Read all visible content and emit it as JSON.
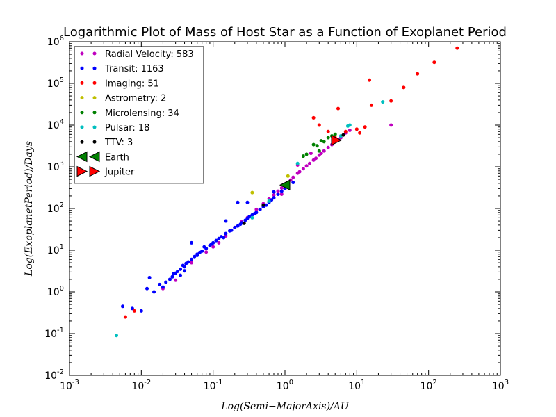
{
  "chart_data": {
    "type": "scatter",
    "title": "Logarithmic Plot of Mass of Host Star as a Function of Exoplanet Period",
    "xlabel": "Log(Semi−MajorAxis)/AU",
    "ylabel": "Log(ExoplanetPeriod)/Days",
    "xscale": "log",
    "yscale": "log",
    "xlim": [
      0.001,
      1000
    ],
    "ylim": [
      0.01,
      1000000
    ],
    "x_ticks": [
      {
        "base": "10",
        "exp": "-3"
      },
      {
        "base": "10",
        "exp": "-2"
      },
      {
        "base": "10",
        "exp": "-1"
      },
      {
        "base": "10",
        "exp": "0"
      },
      {
        "base": "10",
        "exp": "1"
      },
      {
        "base": "10",
        "exp": "2"
      },
      {
        "base": "10",
        "exp": "3"
      }
    ],
    "y_ticks": [
      {
        "base": "10",
        "exp": "-2"
      },
      {
        "base": "10",
        "exp": "-1"
      },
      {
        "base": "10",
        "exp": "0"
      },
      {
        "base": "10",
        "exp": "1"
      },
      {
        "base": "10",
        "exp": "2"
      },
      {
        "base": "10",
        "exp": "3"
      },
      {
        "base": "10",
        "exp": "4"
      },
      {
        "base": "10",
        "exp": "5"
      },
      {
        "base": "10",
        "exp": "6"
      }
    ],
    "grid": false,
    "legend_position": "upper-left",
    "series": [
      {
        "name": "Radial Velocity: 583",
        "color": "#bf00bf",
        "marker": "circle",
        "points": [
          [
            0.02,
            1.2
          ],
          [
            0.03,
            1.9
          ],
          [
            0.05,
            5
          ],
          [
            0.08,
            9
          ],
          [
            0.1,
            12
          ],
          [
            0.12,
            15
          ],
          [
            0.15,
            22
          ],
          [
            0.2,
            35
          ],
          [
            0.25,
            48
          ],
          [
            0.3,
            60
          ],
          [
            0.4,
            95
          ],
          [
            0.5,
            130
          ],
          [
            0.6,
            170
          ],
          [
            0.7,
            210
          ],
          [
            0.8,
            260
          ],
          [
            0.9,
            310
          ],
          [
            1.0,
            365
          ],
          [
            1.1,
            420
          ],
          [
            1.2,
            480
          ],
          [
            1.3,
            560
          ],
          [
            1.5,
            700
          ],
          [
            1.6,
            760
          ],
          [
            1.8,
            900
          ],
          [
            2.0,
            1050
          ],
          [
            2.2,
            1200
          ],
          [
            2.5,
            1450
          ],
          [
            2.7,
            1600
          ],
          [
            3.0,
            1900
          ],
          [
            3.2,
            2100
          ],
          [
            3.5,
            2400
          ],
          [
            4.0,
            2900
          ],
          [
            4.5,
            3400
          ],
          [
            5.0,
            4100
          ],
          [
            5.5,
            4500
          ],
          [
            6.0,
            5000
          ],
          [
            7.0,
            6500
          ],
          [
            8.0,
            7500
          ],
          [
            30,
            10000
          ],
          [
            1.5,
            1100
          ],
          [
            0.9,
            220
          ],
          [
            2.3,
            2100
          ]
        ]
      },
      {
        "name": "Transit: 1163",
        "color": "#0000ff",
        "marker": "circle",
        "points": [
          [
            0.0055,
            0.45
          ],
          [
            0.0075,
            0.4
          ],
          [
            0.01,
            0.35
          ],
          [
            0.012,
            1.2
          ],
          [
            0.013,
            2.2
          ],
          [
            0.015,
            1.0
          ],
          [
            0.018,
            1.5
          ],
          [
            0.02,
            1.3
          ],
          [
            0.022,
            1.7
          ],
          [
            0.025,
            2.0
          ],
          [
            0.027,
            2.3
          ],
          [
            0.03,
            2.8
          ],
          [
            0.032,
            3.1
          ],
          [
            0.035,
            3.5
          ],
          [
            0.04,
            4.0
          ],
          [
            0.042,
            4.8
          ],
          [
            0.045,
            5.2
          ],
          [
            0.05,
            6.0
          ],
          [
            0.055,
            7.0
          ],
          [
            0.06,
            8.0
          ],
          [
            0.065,
            8.8
          ],
          [
            0.07,
            9.5
          ],
          [
            0.08,
            11
          ],
          [
            0.09,
            13
          ],
          [
            0.1,
            15
          ],
          [
            0.11,
            17
          ],
          [
            0.12,
            19
          ],
          [
            0.13,
            21
          ],
          [
            0.15,
            25
          ],
          [
            0.17,
            29
          ],
          [
            0.2,
            35
          ],
          [
            0.22,
            38
          ],
          [
            0.25,
            45
          ],
          [
            0.28,
            52
          ],
          [
            0.3,
            58
          ],
          [
            0.35,
            70
          ],
          [
            0.4,
            80
          ],
          [
            0.45,
            95
          ],
          [
            0.5,
            110
          ],
          [
            0.6,
            140
          ],
          [
            0.7,
            180
          ],
          [
            0.8,
            220
          ],
          [
            0.9,
            260
          ],
          [
            1.0,
            300
          ],
          [
            0.3,
            140
          ],
          [
            0.22,
            140
          ],
          [
            0.7,
            250
          ],
          [
            1.1,
            370
          ],
          [
            1.3,
            420
          ],
          [
            0.05,
            15
          ],
          [
            0.15,
            50
          ],
          [
            0.06,
            7.5
          ],
          [
            0.04,
            3.2
          ],
          [
            0.035,
            2.5
          ],
          [
            0.028,
            2.7
          ],
          [
            0.038,
            4.3
          ],
          [
            0.075,
            12
          ],
          [
            0.095,
            14
          ],
          [
            0.14,
            20
          ],
          [
            0.18,
            30
          ],
          [
            0.24,
            42
          ],
          [
            0.32,
            64
          ],
          [
            0.38,
            76
          ],
          [
            0.55,
            120
          ],
          [
            0.65,
            160
          ]
        ]
      },
      {
        "name": "Imaging: 51",
        "color": "#ff0000",
        "marker": "circle",
        "points": [
          [
            0.006,
            0.25
          ],
          [
            0.008,
            0.35
          ],
          [
            2.5,
            15000
          ],
          [
            5.5,
            25000
          ],
          [
            7.0,
            7000
          ],
          [
            10,
            8000
          ],
          [
            11,
            6500
          ],
          [
            13,
            9000
          ],
          [
            15,
            120000
          ],
          [
            16,
            30000
          ],
          [
            30,
            38000
          ],
          [
            45,
            80000
          ],
          [
            70,
            170000
          ],
          [
            120,
            320000
          ],
          [
            250,
            700000
          ],
          [
            3,
            10000
          ],
          [
            4,
            7000
          ],
          [
            5,
            5000
          ]
        ]
      },
      {
        "name": "Astrometry: 2",
        "color": "#bfbf00",
        "marker": "circle",
        "points": [
          [
            0.35,
            240
          ],
          [
            1.1,
            600
          ]
        ]
      },
      {
        "name": "Microlensing: 34",
        "color": "#008000",
        "marker": "circle",
        "points": [
          [
            1.8,
            1800
          ],
          [
            2.5,
            3400
          ],
          [
            3.0,
            2400
          ],
          [
            2.0,
            2000
          ],
          [
            3.5,
            4000
          ],
          [
            4.5,
            5500
          ],
          [
            2.8,
            3200
          ],
          [
            3.2,
            4200
          ],
          [
            4.0,
            5000
          ],
          [
            5.0,
            6000
          ]
        ]
      },
      {
        "name": "Pulsar: 18",
        "color": "#00bfbf",
        "marker": "circle",
        "points": [
          [
            0.0045,
            0.09
          ],
          [
            0.35,
            60
          ],
          [
            0.6,
            150
          ],
          [
            1.5,
            1200
          ],
          [
            7.5,
            9500
          ],
          [
            8.0,
            10000
          ],
          [
            23,
            36000
          ],
          [
            6.0,
            5500
          ]
        ]
      },
      {
        "name": "TTV: 3",
        "color": "#000000",
        "marker": "circle",
        "points": [
          [
            0.27,
            44
          ],
          [
            0.5,
            120
          ],
          [
            6.5,
            5800
          ]
        ]
      },
      {
        "name": "Earth",
        "color": "#008000",
        "marker": "triangle-left",
        "points": [
          [
            1.0,
            365.25
          ]
        ]
      },
      {
        "name": "Jupiter",
        "color": "#ff0000",
        "marker": "triangle-right",
        "points": [
          [
            5.2,
            4332.6
          ]
        ]
      }
    ]
  }
}
